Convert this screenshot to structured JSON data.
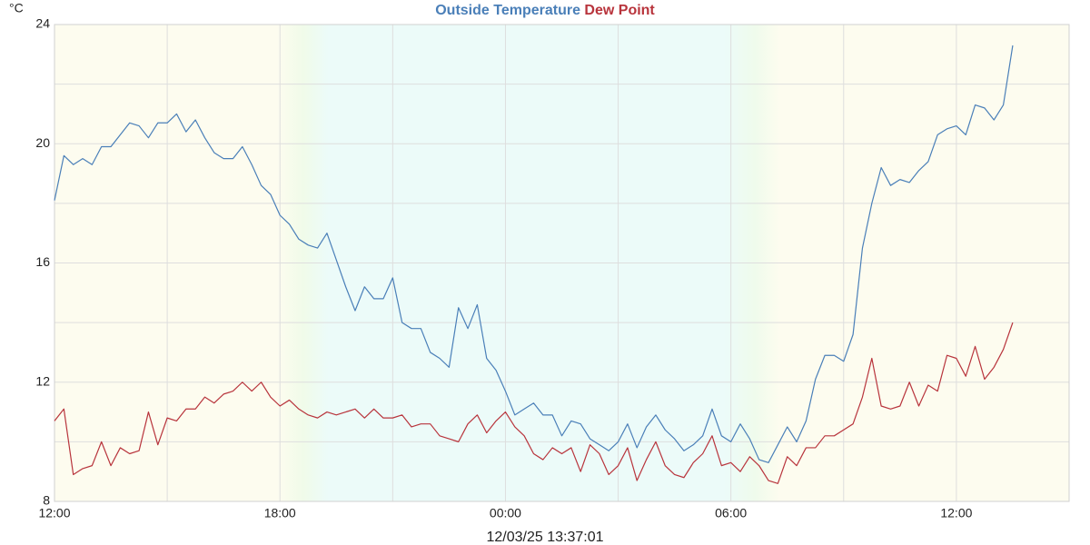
{
  "chart_data": {
    "type": "line",
    "y_label": "°C",
    "caption": "12/03/25 13:37:01",
    "x": [
      0,
      15,
      30,
      45,
      60,
      75,
      90,
      105,
      120,
      135,
      150,
      165,
      180,
      195,
      210,
      225,
      240,
      255,
      270,
      285,
      300,
      315,
      330,
      345,
      360,
      375,
      390,
      405,
      420,
      435,
      450,
      465,
      480,
      495,
      510,
      525,
      540,
      555,
      570,
      585,
      600,
      615,
      630,
      645,
      660,
      675,
      690,
      705,
      720,
      735,
      750,
      765,
      780,
      795,
      810,
      825,
      840,
      855,
      870,
      885,
      900,
      915,
      930,
      945,
      960,
      975,
      990,
      1005,
      1020,
      1035,
      1050,
      1065,
      1080,
      1095,
      1110,
      1125,
      1140,
      1155,
      1170,
      1185,
      1200,
      1215,
      1230,
      1245,
      1260,
      1275,
      1290,
      1305,
      1320,
      1335,
      1350,
      1365,
      1380,
      1395,
      1410,
      1425,
      1440,
      1455,
      1470,
      1485,
      1500,
      1515,
      1530
    ],
    "series": [
      {
        "name": "Outside Temperature",
        "color": "#4a7fb8",
        "values": [
          18.1,
          19.6,
          19.3,
          19.5,
          19.3,
          19.9,
          19.9,
          20.3,
          20.7,
          20.6,
          20.2,
          20.7,
          20.7,
          21.0,
          20.4,
          20.8,
          20.2,
          19.7,
          19.5,
          19.5,
          19.9,
          19.3,
          18.6,
          18.3,
          17.6,
          17.3,
          16.8,
          16.6,
          16.5,
          17.0,
          16.1,
          15.2,
          14.4,
          15.2,
          14.8,
          14.8,
          15.5,
          14.0,
          13.8,
          13.8,
          13.0,
          12.8,
          12.5,
          14.5,
          13.8,
          14.6,
          12.8,
          12.4,
          11.7,
          10.9,
          11.1,
          11.3,
          10.9,
          10.9,
          10.2,
          10.7,
          10.6,
          10.1,
          9.9,
          9.7,
          10.0,
          10.6,
          9.8,
          10.5,
          10.9,
          10.4,
          10.1,
          9.7,
          9.9,
          10.2,
          11.1,
          10.2,
          10.0,
          10.6,
          10.1,
          9.4,
          9.3,
          9.9,
          10.5,
          10.0,
          10.7,
          12.1,
          12.9,
          12.9,
          12.7,
          13.6,
          16.5,
          18.0,
          19.2,
          18.6,
          18.8,
          18.7,
          19.1,
          19.4,
          20.3,
          20.5,
          20.6,
          20.3,
          21.3,
          21.2,
          20.8,
          21.3,
          23.3
        ]
      },
      {
        "name": "Dew Point",
        "color": "#b8343c",
        "values": [
          10.7,
          11.1,
          8.9,
          9.1,
          9.2,
          10.0,
          9.2,
          9.8,
          9.6,
          9.7,
          11.0,
          9.9,
          10.8,
          10.7,
          11.1,
          11.1,
          11.5,
          11.3,
          11.6,
          11.7,
          12.0,
          11.7,
          12.0,
          11.5,
          11.2,
          11.4,
          11.1,
          10.9,
          10.8,
          11.0,
          10.9,
          11.0,
          11.1,
          10.8,
          11.1,
          10.8,
          10.8,
          10.9,
          10.5,
          10.6,
          10.6,
          10.2,
          10.1,
          10.0,
          10.6,
          10.9,
          10.3,
          10.7,
          11.0,
          10.5,
          10.2,
          9.6,
          9.4,
          9.8,
          9.6,
          9.8,
          9.0,
          9.9,
          9.6,
          8.9,
          9.2,
          9.8,
          8.7,
          9.4,
          10.0,
          9.2,
          8.9,
          8.8,
          9.3,
          9.6,
          10.2,
          9.2,
          9.3,
          9.0,
          9.5,
          9.2,
          8.7,
          8.6,
          9.5,
          9.2,
          9.8,
          9.8,
          10.2,
          10.2,
          10.4,
          10.6,
          11.5,
          12.8,
          11.2,
          11.1,
          11.2,
          12.0,
          11.2,
          11.9,
          11.7,
          12.9,
          12.8,
          12.2,
          13.2,
          12.1,
          12.5,
          13.1,
          14.0
        ]
      }
    ],
    "xlim": [
      0,
      1620
    ],
    "xticks": [
      {
        "value": 0,
        "label": "12:00"
      },
      {
        "value": 360,
        "label": "18:00"
      },
      {
        "value": 720,
        "label": "00:00"
      },
      {
        "value": 1080,
        "label": "06:00"
      },
      {
        "value": 1440,
        "label": "12:00"
      }
    ],
    "xminor": [
      180,
      540,
      900,
      1260
    ],
    "ylim": [
      8,
      24
    ],
    "yticks": [
      8,
      12,
      16,
      20,
      24
    ],
    "yminor": [
      10,
      14,
      18,
      22
    ],
    "grid": true
  }
}
